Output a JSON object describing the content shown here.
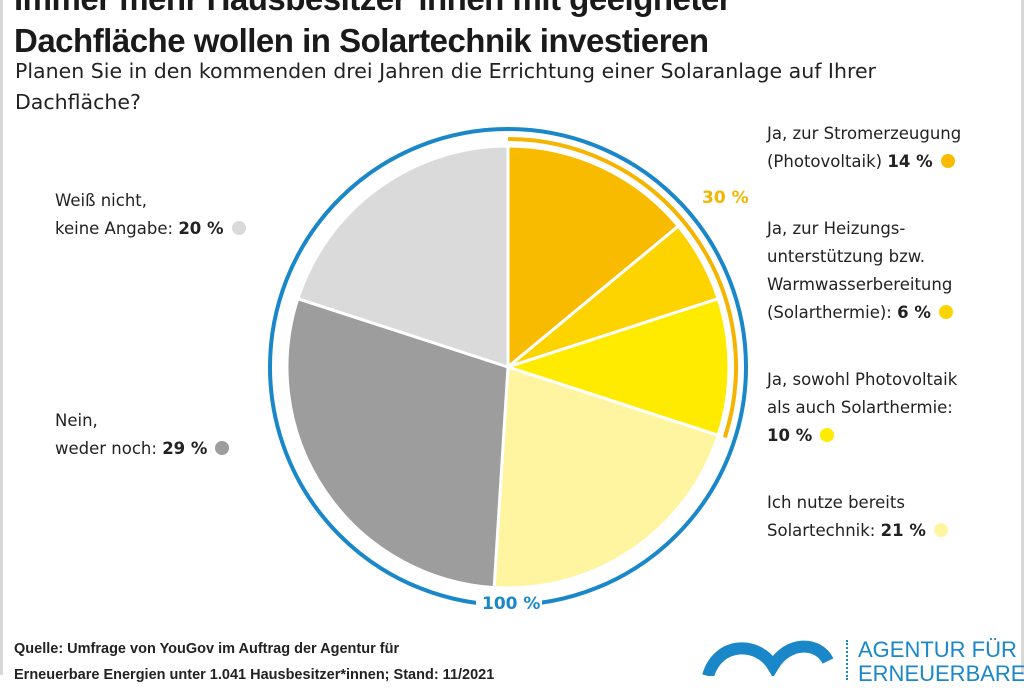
{
  "title_line1": "Immer mehr Hausbesitzer*innen mit geeigneter",
  "title_line2": "Dachfläche wollen in Solartechnik investieren",
  "subtitle": "Planen Sie in den kommenden drei Jahren die Errichtung einer Solaranlage auf Ihrer Dachfläche?",
  "chart_data": {
    "type": "pie",
    "start": "top",
    "direction": "clockwise",
    "slices": [
      {
        "label_lines": [
          "Ja, zur Stromerzeugung",
          "(Photovoltaik)"
        ],
        "value": 14,
        "value_label": "14 %",
        "color": "#f9bb00"
      },
      {
        "label_lines": [
          "Ja, zur Heizungs-",
          "unterstützung bzw.",
          "Warmwasserbereitung",
          "(Solarthermie):"
        ],
        "value": 6,
        "value_label": "6 %",
        "color": "#fdd300"
      },
      {
        "label_lines": [
          "Ja, sowohl Photovoltaik",
          "als auch Solarthermie:"
        ],
        "value": 10,
        "value_label": "10 %",
        "color": "#ffeb00"
      },
      {
        "label_lines": [
          "Ich nutze bereits",
          "Solartechnik:"
        ],
        "value": 21,
        "value_label": "21 %",
        "color": "#fff5a0"
      },
      {
        "label_lines": [
          "Nein,",
          "weder noch:"
        ],
        "value": 29,
        "value_label": "29 %",
        "color": "#9d9d9d"
      },
      {
        "label_lines": [
          "Weiß nicht,",
          "keine Angabe:"
        ],
        "value": 20,
        "value_label": "20 %",
        "color": "#dadada"
      }
    ],
    "annotations": [
      {
        "text": "30 %",
        "covers": "first three slices",
        "color": "#f5b400"
      },
      {
        "text": "100 %",
        "covers": "all slices",
        "color": "#1a87c9"
      }
    ]
  },
  "source_line1": "Quelle: Umfrage von YouGov im Auftrag der Agentur für",
  "source_line2": "Erneuerbare Energien unter 1.041 Hausbesitzer*innen; Stand: 11/2021",
  "logo_text": "AGENTUR FÜR\nERNEUERBARE"
}
